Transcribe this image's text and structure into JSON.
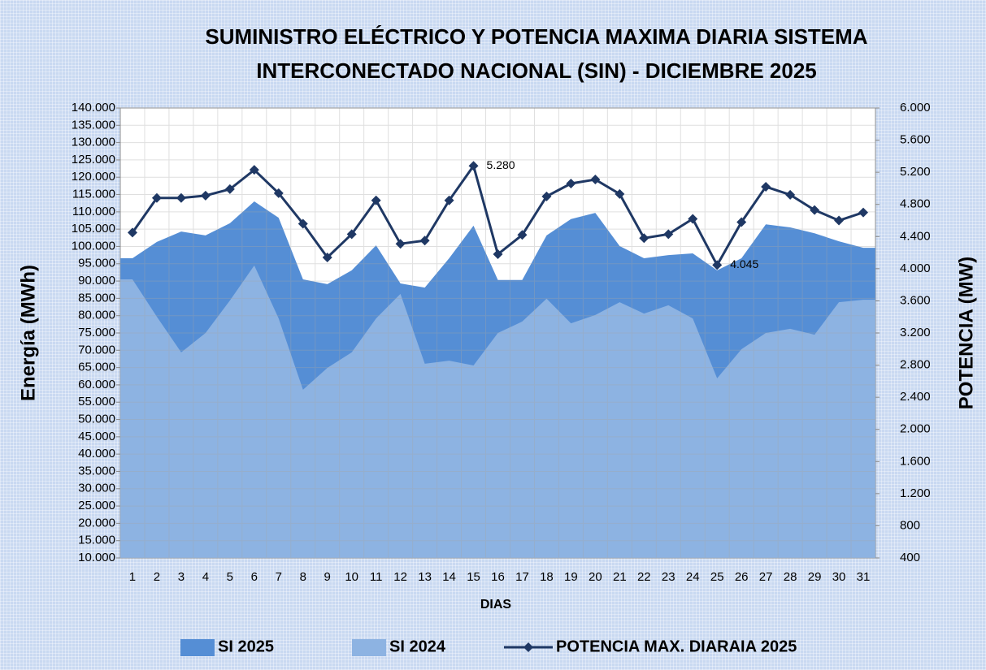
{
  "chart_data": {
    "type": "area-line",
    "title": [
      "SUMINISTRO ELÉCTRICO Y POTENCIA MAXIMA DIARIA SISTEMA",
      "INTERCONECTADO NACIONAL (SIN) - DICIEMBRE 2025"
    ],
    "xlabel": "DIAS",
    "ylabel": "Energía (MWh)",
    "y2label": "POTENCIA (MW)",
    "categories": [
      "1",
      "2",
      "3",
      "4",
      "5",
      "6",
      "7",
      "8",
      "9",
      "10",
      "11",
      "12",
      "13",
      "14",
      "15",
      "16",
      "17",
      "18",
      "19",
      "20",
      "21",
      "22",
      "23",
      "24",
      "25",
      "26",
      "27",
      "28",
      "29",
      "30",
      "31"
    ],
    "series": [
      {
        "name": "SI 2025",
        "kind": "area",
        "color": "#558ed5",
        "values": [
          96600,
          101300,
          104300,
          103200,
          106700,
          113000,
          108300,
          90500,
          89100,
          93100,
          100300,
          89300,
          88100,
          96600,
          106000,
          90300,
          90300,
          103200,
          107900,
          109700,
          100100,
          96600,
          97500,
          98000,
          93100,
          96600,
          106400,
          105500,
          103800,
          101500,
          99600
        ]
      },
      {
        "name": "SI 2024",
        "kind": "area",
        "color": "#8db3e2",
        "values": [
          90500,
          79700,
          69400,
          75000,
          84400,
          94500,
          79200,
          58600,
          64900,
          69400,
          79200,
          86300,
          66100,
          67000,
          65600,
          75000,
          78300,
          84900,
          77800,
          80200,
          83900,
          80600,
          83000,
          79200,
          61900,
          70300,
          75000,
          76200,
          74500,
          83900,
          84600
        ]
      },
      {
        "name": "POTENCIA MAX. DIARAIA 2025",
        "kind": "line",
        "axis": "y2",
        "color": "#1f3864",
        "values": [
          4450,
          4880,
          4880,
          4910,
          4990,
          5230,
          4940,
          4560,
          4140,
          4430,
          4850,
          4310,
          4350,
          4850,
          5280,
          4180,
          4420,
          4900,
          5060,
          5110,
          4930,
          4380,
          4430,
          4620,
          4045,
          4580,
          5020,
          4920,
          4730,
          4600,
          4700
        ],
        "value_labels": [
          null,
          null,
          null,
          null,
          null,
          null,
          null,
          null,
          null,
          null,
          null,
          null,
          null,
          null,
          "5.280",
          null,
          null,
          null,
          null,
          null,
          null,
          null,
          null,
          null,
          "4.045",
          null,
          null,
          null,
          null,
          null,
          null
        ]
      }
    ],
    "ylim": [
      10000,
      140000
    ],
    "yticks": [
      {
        "value": 10000,
        "label": "10.000"
      },
      {
        "value": 15000,
        "label": "15.000"
      },
      {
        "value": 20000,
        "label": "20.000"
      },
      {
        "value": 25000,
        "label": "25.000"
      },
      {
        "value": 30000,
        "label": "30.000"
      },
      {
        "value": 35000,
        "label": "35.000"
      },
      {
        "value": 40000,
        "label": "40.000"
      },
      {
        "value": 45000,
        "label": "45.000"
      },
      {
        "value": 50000,
        "label": "50.000"
      },
      {
        "value": 55000,
        "label": "55.000"
      },
      {
        "value": 60000,
        "label": "60.000"
      },
      {
        "value": 65000,
        "label": "65.000"
      },
      {
        "value": 70000,
        "label": "70.000"
      },
      {
        "value": 75000,
        "label": "75.000"
      },
      {
        "value": 80000,
        "label": "80.000"
      },
      {
        "value": 85000,
        "label": "85.000"
      },
      {
        "value": 90000,
        "label": "90.000"
      },
      {
        "value": 95000,
        "label": "95.000"
      },
      {
        "value": 100000,
        "label": "100.000"
      },
      {
        "value": 105000,
        "label": "105.000"
      },
      {
        "value": 110000,
        "label": "110.000"
      },
      {
        "value": 115000,
        "label": "115.000"
      },
      {
        "value": 120000,
        "label": "120.000"
      },
      {
        "value": 125000,
        "label": "125.000"
      },
      {
        "value": 130000,
        "label": "130.000"
      },
      {
        "value": 135000,
        "label": "135.000"
      },
      {
        "value": 140000,
        "label": "140.000"
      }
    ],
    "y2lim": [
      400,
      6000
    ],
    "y2ticks": [
      400,
      800,
      {
        "value": 1200,
        "label": "1.200"
      },
      {
        "value": 1600,
        "label": "1.600"
      },
      {
        "value": 2000,
        "label": "2.000"
      },
      {
        "value": 2400,
        "label": "2.400"
      },
      {
        "value": 2800,
        "label": "2.800"
      },
      {
        "value": 3200,
        "label": "3.200"
      },
      {
        "value": 3600,
        "label": "3.600"
      },
      {
        "value": 4000,
        "label": "4.000"
      },
      {
        "value": 4400,
        "label": "4.400"
      },
      {
        "value": 4800,
        "label": "4.800"
      },
      {
        "value": 5200,
        "label": "5.200"
      },
      {
        "value": 5600,
        "label": "5.600"
      },
      {
        "value": 6000,
        "label": "6.000"
      }
    ],
    "grid": true
  }
}
